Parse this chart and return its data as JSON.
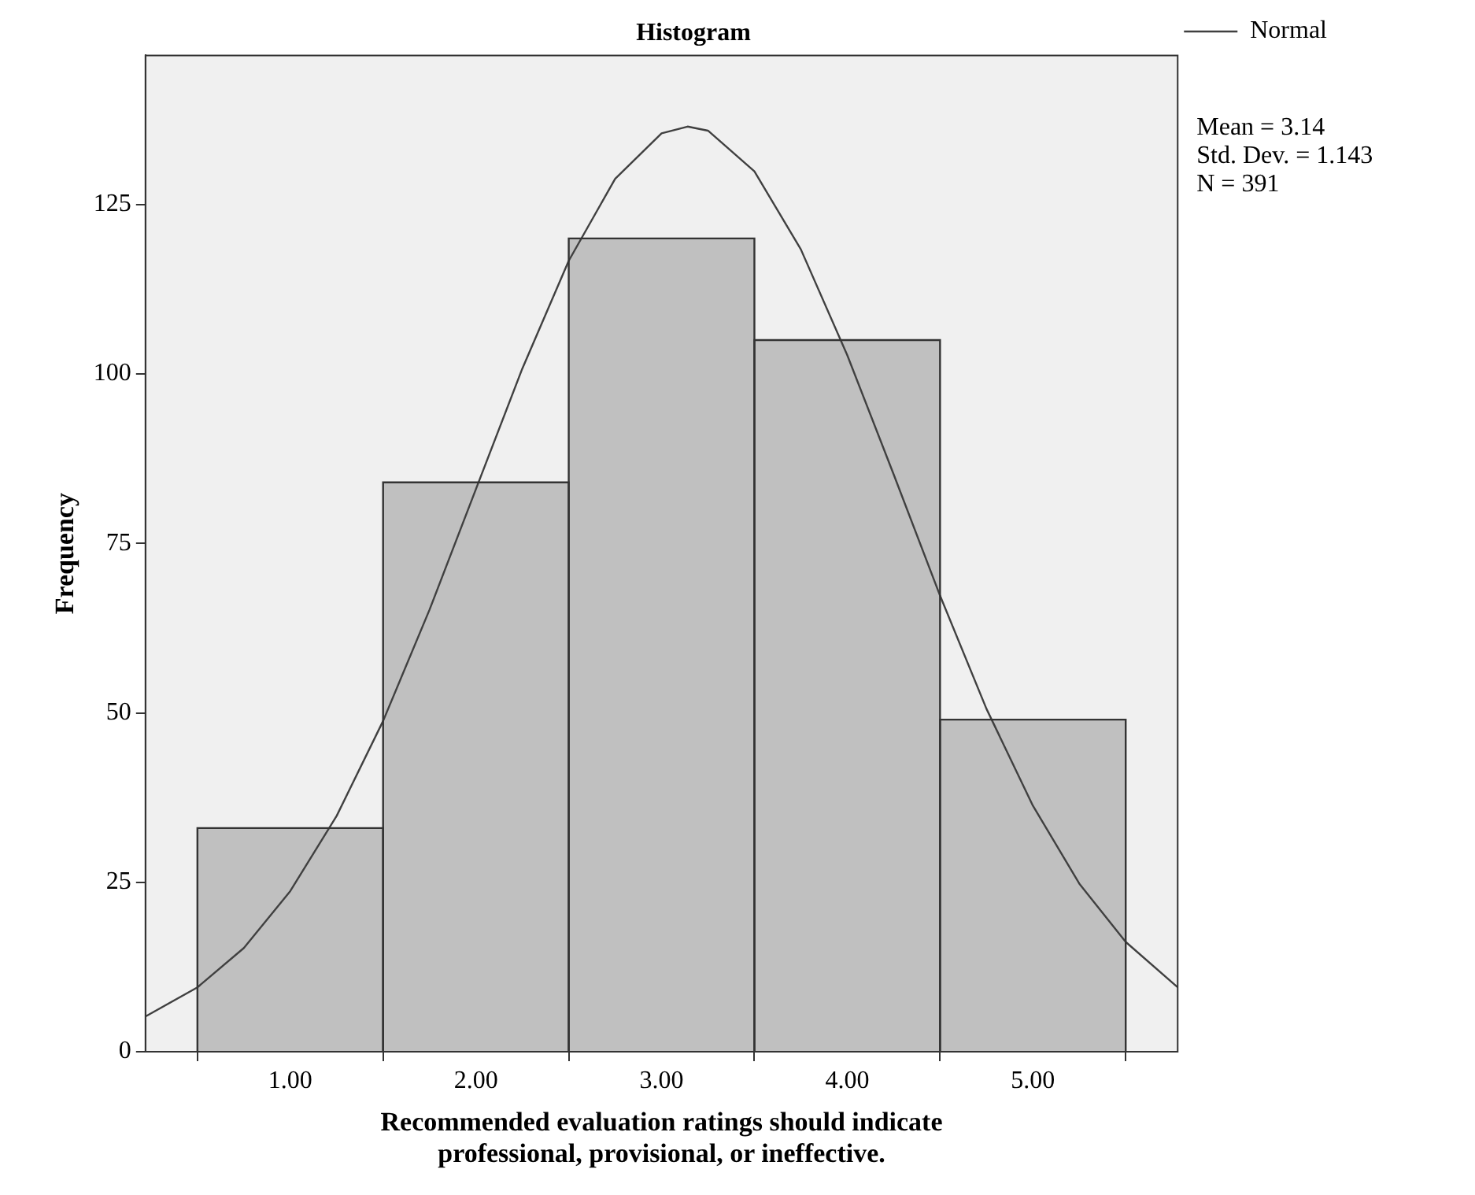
{
  "chart_data": {
    "type": "histogram",
    "title": "Histogram",
    "xlabel": "Recommended evaluation ratings should indicate\nprofessional, provisional, or ineffective.",
    "ylabel": "Frequency",
    "bins": [
      0.5,
      1.5,
      2.5,
      3.5,
      4.5,
      5.5
    ],
    "values": [
      33,
      84,
      120,
      105,
      49
    ],
    "color": "#c0c0c0",
    "series": [
      {
        "type": "line",
        "name": "Normal",
        "color": "#404040",
        "marker": "none",
        "x": [
          0.22,
          0.5,
          0.75,
          1,
          1.25,
          1.5,
          1.75,
          2,
          2.25,
          2.5,
          2.75,
          3,
          3.14,
          3.25,
          3.5,
          3.75,
          4,
          4.25,
          4.5,
          4.75,
          5,
          5.25,
          5.5,
          5.78
        ],
        "values": [
          5.2,
          9.5,
          15.3,
          23.7,
          34.8,
          48.8,
          65.2,
          83.0,
          100.8,
          116.7,
          128.8,
          135.5,
          136.5,
          135.9,
          129.9,
          118.4,
          102.8,
          85.2,
          67.3,
          50.6,
          36.3,
          24.8,
          16.2,
          9.5
        ]
      }
    ],
    "xlim": [
      0.22,
      5.78
    ],
    "xticks": [
      {
        "value": 1,
        "label": "1.00"
      },
      {
        "value": 2,
        "label": "2.00"
      },
      {
        "value": 3,
        "label": "3.00"
      },
      {
        "value": 4,
        "label": "4.00"
      },
      {
        "value": 5,
        "label": "5.00"
      }
    ],
    "ylim": [
      0,
      147
    ],
    "yticks": [
      0,
      25,
      50,
      75,
      100,
      125
    ],
    "grid": false,
    "legend": "top right",
    "annotations": [
      "Mean = 3.14",
      "Std. Dev. = 1.143",
      "N = 391"
    ]
  }
}
